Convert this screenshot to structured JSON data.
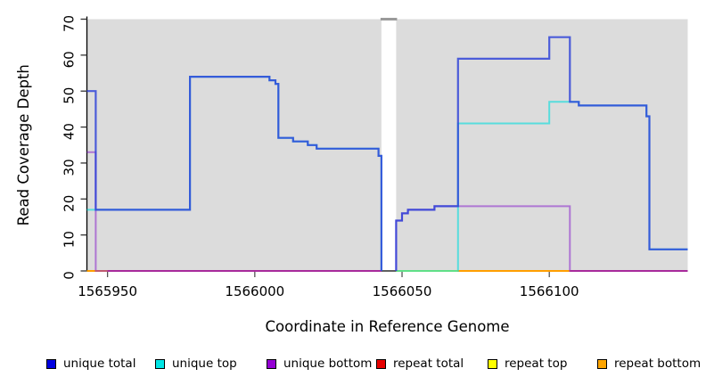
{
  "chart_data": {
    "type": "line",
    "title": "",
    "xlabel": "Coordinate in Reference Genome",
    "ylabel": "Read Coverage Depth",
    "x_axis": {
      "range": [
        1565943,
        1566147
      ],
      "ticks": [
        1565950,
        1566000,
        1566050,
        1566100
      ]
    },
    "y_axis": {
      "range": [
        0,
        70
      ],
      "ticks": [
        0,
        10,
        20,
        30,
        40,
        50,
        60,
        70
      ]
    },
    "plot_bg": "#dcdcdc",
    "gap_region": {
      "x1": 1566043,
      "x2": 1566048,
      "color": "#ffffff",
      "cap_color": "#9a9a9a"
    },
    "series": [
      {
        "name": "repeat total",
        "color": "#DC3060",
        "opacity": 0.9,
        "width": 2,
        "paths": [
          [
            [
              1565943,
              0
            ],
            [
              1566043,
              0
            ]
          ],
          [
            [
              1566048,
              0
            ],
            [
              1566147,
              0
            ]
          ]
        ]
      },
      {
        "name": "repeat top",
        "color": "#F5F500",
        "opacity": 0.9,
        "width": 2,
        "paths": [
          [
            [
              1566048,
              0
            ],
            [
              1566069,
              0
            ]
          ]
        ]
      },
      {
        "name": "repeat bottom",
        "color": "#FF9E00",
        "opacity": 1,
        "width": 2,
        "paths": [
          [
            [
              1565943,
              0
            ],
            [
              1565950,
              0
            ]
          ],
          [
            [
              1566069,
              0
            ],
            [
              1566107,
              0
            ]
          ]
        ]
      },
      {
        "name": "unique bottom",
        "color": "#8822CC",
        "opacity": 0.55,
        "width": 2,
        "paths": [
          [
            [
              1565943,
              33
            ],
            [
              1565946,
              33
            ],
            [
              1565946,
              0
            ],
            [
              1566043,
              0
            ]
          ],
          [
            [
              1566048,
              0
            ],
            [
              1566048,
              14
            ],
            [
              1566050,
              14
            ],
            [
              1566050,
              16
            ],
            [
              1566052,
              16
            ],
            [
              1566052,
              17
            ],
            [
              1566061,
              17
            ],
            [
              1566061,
              18
            ],
            [
              1566107,
              18
            ],
            [
              1566107,
              0
            ],
            [
              1566147,
              0
            ]
          ]
        ]
      },
      {
        "name": "unique top",
        "color": "#00DDDD",
        "opacity": 0.6,
        "width": 2,
        "paths": [
          [
            [
              1565943,
              17
            ],
            [
              1565978,
              17
            ],
            [
              1565978,
              54
            ],
            [
              1566005,
              54
            ],
            [
              1566005,
              53
            ],
            [
              1566007,
              53
            ],
            [
              1566007,
              52
            ],
            [
              1566008,
              52
            ],
            [
              1566008,
              37
            ],
            [
              1566013,
              37
            ],
            [
              1566013,
              36
            ],
            [
              1566018,
              36
            ],
            [
              1566018,
              35
            ],
            [
              1566021,
              35
            ],
            [
              1566021,
              34
            ],
            [
              1566042,
              34
            ],
            [
              1566042,
              32
            ],
            [
              1566043,
              32
            ],
            [
              1566043,
              0
            ]
          ],
          [
            [
              1566048,
              0
            ],
            [
              1566069,
              0
            ],
            [
              1566069,
              41
            ],
            [
              1566100,
              41
            ],
            [
              1566100,
              47
            ],
            [
              1566110,
              47
            ],
            [
              1566110,
              46
            ],
            [
              1566133,
              46
            ],
            [
              1566133,
              43
            ],
            [
              1566134,
              43
            ],
            [
              1566134,
              6
            ],
            [
              1566147,
              6
            ]
          ]
        ]
      },
      {
        "name": "unique total",
        "color": "#2B3FD8",
        "opacity": 0.82,
        "width": 2.2,
        "paths": [
          [
            [
              1565943,
              50
            ],
            [
              1565946,
              50
            ],
            [
              1565946,
              17
            ],
            [
              1565978,
              17
            ],
            [
              1565978,
              54
            ],
            [
              1566005,
              54
            ],
            [
              1566005,
              53
            ],
            [
              1566007,
              53
            ],
            [
              1566007,
              52
            ],
            [
              1566008,
              52
            ],
            [
              1566008,
              37
            ],
            [
              1566013,
              37
            ],
            [
              1566013,
              36
            ],
            [
              1566018,
              36
            ],
            [
              1566018,
              35
            ],
            [
              1566021,
              35
            ],
            [
              1566021,
              34
            ],
            [
              1566042,
              34
            ],
            [
              1566042,
              32
            ],
            [
              1566043,
              32
            ],
            [
              1566043,
              0
            ]
          ],
          [
            [
              1566048,
              0
            ],
            [
              1566048,
              14
            ],
            [
              1566050,
              14
            ],
            [
              1566050,
              16
            ],
            [
              1566052,
              16
            ],
            [
              1566052,
              17
            ],
            [
              1566061,
              17
            ],
            [
              1566061,
              18
            ],
            [
              1566069,
              18
            ],
            [
              1566069,
              59
            ],
            [
              1566100,
              59
            ],
            [
              1566100,
              65
            ],
            [
              1566107,
              65
            ],
            [
              1566107,
              47
            ],
            [
              1566110,
              47
            ],
            [
              1566110,
              46
            ],
            [
              1566133,
              46
            ],
            [
              1566133,
              43
            ],
            [
              1566134,
              43
            ],
            [
              1566134,
              6
            ],
            [
              1566147,
              6
            ]
          ]
        ]
      }
    ]
  },
  "legend": {
    "items": [
      {
        "label": "unique total",
        "color": "#0000E0"
      },
      {
        "label": "unique top",
        "color": "#00E5E5"
      },
      {
        "label": "unique bottom",
        "color": "#9400D3"
      },
      {
        "label": "repeat total",
        "color": "#E60000"
      },
      {
        "label": "repeat top",
        "color": "#FFFF00"
      },
      {
        "label": "repeat bottom",
        "color": "#FFA500"
      }
    ]
  }
}
